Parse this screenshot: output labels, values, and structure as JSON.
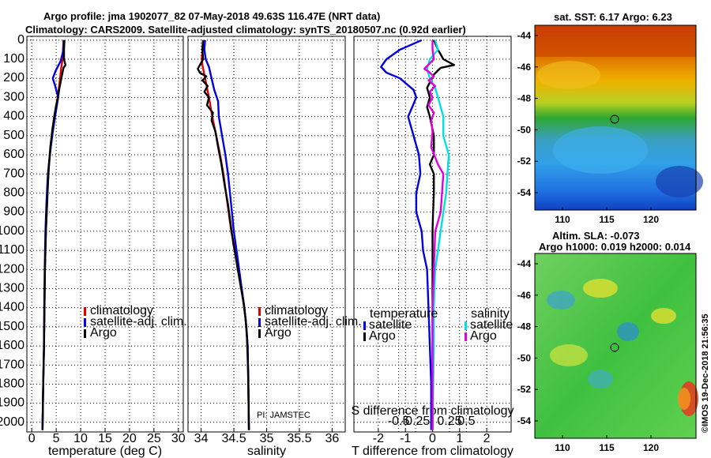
{
  "header": {
    "line1": "Argo profile: jma 1902077_82 07-May-2018 49.63S 116.47E (NRT data)",
    "line2": "Climatology: CARS2009. Satellite-adjusted climatology: synTS_20180507.nc (0.92d earlier)"
  },
  "depth_ticks": [
    0,
    100,
    200,
    300,
    400,
    500,
    600,
    700,
    800,
    900,
    1000,
    1100,
    1200,
    1300,
    1400,
    1500,
    1600,
    1700,
    1800,
    1900,
    2000
  ],
  "colors": {
    "climatology": "#e00000",
    "satellite": "#0000e0",
    "argo": "#000000",
    "satellite_diff": "#00e0e0",
    "argo_sdiff": "#e000e0"
  },
  "chart_data": [
    {
      "type": "line",
      "name": "temperature-profile",
      "xlabel": "temperature (deg C)",
      "ylabel": "depth",
      "xlim": [
        -1,
        31
      ],
      "ylim": [
        2050,
        -20
      ],
      "xticks": [
        0,
        5,
        10,
        15,
        20,
        25,
        30
      ],
      "legend": [
        "climatology",
        "satellite-adj. clim.",
        "Argo"
      ],
      "series": [
        {
          "name": "climatology",
          "color": "climatology",
          "points": [
            [
              6.5,
              0
            ],
            [
              6.4,
              50
            ],
            [
              6.3,
              100
            ],
            [
              6.0,
              150
            ],
            [
              5.8,
              200
            ],
            [
              5.3,
              300
            ],
            [
              4.6,
              400
            ],
            [
              4.1,
              500
            ],
            [
              3.7,
              600
            ],
            [
              3.4,
              700
            ],
            [
              3.2,
              800
            ],
            [
              3.05,
              900
            ],
            [
              2.9,
              1000
            ],
            [
              2.8,
              1100
            ],
            [
              2.7,
              1200
            ],
            [
              2.6,
              1400
            ],
            [
              2.5,
              1600
            ],
            [
              2.35,
              1800
            ],
            [
              2.2,
              2040
            ]
          ]
        },
        {
          "name": "satellite-adj. clim.",
          "color": "satellite",
          "points": [
            [
              6.6,
              0
            ],
            [
              6.4,
              60
            ],
            [
              5.9,
              110
            ],
            [
              4.9,
              160
            ],
            [
              4.3,
              200
            ],
            [
              4.8,
              240
            ],
            [
              5.4,
              300
            ],
            [
              4.9,
              380
            ],
            [
              4.3,
              480
            ],
            [
              3.8,
              580
            ],
            [
              3.3,
              700
            ],
            [
              3.0,
              850
            ],
            [
              2.8,
              1000
            ],
            [
              2.65,
              1200
            ],
            [
              2.55,
              1400
            ],
            [
              2.5,
              1600
            ],
            [
              2.35,
              1800
            ],
            [
              2.2,
              2040
            ]
          ]
        },
        {
          "name": "Argo",
          "color": "argo",
          "points": [
            [
              6.7,
              0
            ],
            [
              6.6,
              50
            ],
            [
              6.6,
              100
            ],
            [
              6.9,
              130
            ],
            [
              6.5,
              145
            ],
            [
              6.2,
              180
            ],
            [
              5.9,
              220
            ],
            [
              5.6,
              260
            ],
            [
              5.4,
              300
            ],
            [
              5.0,
              340
            ],
            [
              4.6,
              400
            ],
            [
              4.2,
              470
            ],
            [
              3.8,
              560
            ],
            [
              3.5,
              660
            ],
            [
              3.3,
              760
            ],
            [
              3.1,
              880
            ],
            [
              2.9,
              1000
            ],
            [
              2.8,
              1100
            ],
            [
              2.7,
              1200
            ],
            [
              2.6,
              1400
            ],
            [
              2.5,
              1600
            ],
            [
              2.35,
              1800
            ],
            [
              2.2,
              2040
            ]
          ]
        }
      ]
    },
    {
      "type": "line",
      "name": "salinity-profile",
      "xlabel": "salinity",
      "ylabel": "depth",
      "xlim": [
        33.8,
        36.2
      ],
      "ylim": [
        2050,
        -20
      ],
      "xticks": [
        34,
        34.5,
        35,
        35.5,
        36
      ],
      "xticklabels": [
        "34",
        "34.5",
        "35",
        "35.5",
        "36"
      ],
      "legend": [
        "climatology",
        "satellite-adj. clim.",
        "Argo"
      ],
      "annotation": "PI: JAMSTEC",
      "series": [
        {
          "name": "climatology",
          "color": "climatology",
          "points": [
            [
              34.03,
              0
            ],
            [
              34.02,
              60
            ],
            [
              34.01,
              100
            ],
            [
              34.02,
              130
            ],
            [
              34.06,
              200
            ],
            [
              34.12,
              300
            ],
            [
              34.17,
              400
            ],
            [
              34.23,
              500
            ],
            [
              34.29,
              600
            ],
            [
              34.34,
              700
            ],
            [
              34.38,
              800
            ],
            [
              34.42,
              900
            ],
            [
              34.46,
              1000
            ],
            [
              34.52,
              1100
            ],
            [
              34.56,
              1200
            ],
            [
              34.62,
              1300
            ],
            [
              34.66,
              1400
            ],
            [
              34.69,
              1500
            ],
            [
              34.71,
              1600
            ],
            [
              34.72,
              1800
            ],
            [
              34.73,
              2040
            ]
          ]
        },
        {
          "name": "satellite-adj. clim.",
          "color": "satellite",
          "points": [
            [
              34.06,
              0
            ],
            [
              34.05,
              50
            ],
            [
              34.07,
              100
            ],
            [
              34.12,
              140
            ],
            [
              34.16,
              200
            ],
            [
              34.2,
              260
            ],
            [
              34.26,
              320
            ],
            [
              34.27,
              400
            ],
            [
              34.32,
              500
            ],
            [
              34.37,
              600
            ],
            [
              34.41,
              700
            ],
            [
              34.44,
              800
            ],
            [
              34.47,
              900
            ],
            [
              34.5,
              1000
            ],
            [
              34.54,
              1100
            ],
            [
              34.58,
              1200
            ],
            [
              34.62,
              1300
            ],
            [
              34.66,
              1400
            ],
            [
              34.69,
              1500
            ],
            [
              34.71,
              1600
            ],
            [
              34.72,
              1800
            ],
            [
              34.73,
              2040
            ]
          ]
        },
        {
          "name": "Argo",
          "color": "argo",
          "points": [
            [
              34.03,
              0
            ],
            [
              34.02,
              50
            ],
            [
              34.03,
              100
            ],
            [
              33.95,
              150
            ],
            [
              33.98,
              170
            ],
            [
              34.08,
              190
            ],
            [
              34.02,
              210
            ],
            [
              34.1,
              240
            ],
            [
              34.05,
              270
            ],
            [
              34.12,
              300
            ],
            [
              34.09,
              340
            ],
            [
              34.18,
              380
            ],
            [
              34.16,
              420
            ],
            [
              34.22,
              480
            ],
            [
              34.26,
              560
            ],
            [
              34.31,
              650
            ],
            [
              34.36,
              760
            ],
            [
              34.41,
              860
            ],
            [
              34.45,
              960
            ],
            [
              34.49,
              1060
            ],
            [
              34.54,
              1160
            ],
            [
              34.59,
              1260
            ],
            [
              34.64,
              1360
            ],
            [
              34.68,
              1460
            ],
            [
              34.7,
              1560
            ],
            [
              34.72,
              1750
            ],
            [
              34.73,
              2040
            ]
          ]
        }
      ]
    },
    {
      "type": "line",
      "name": "difference-profile",
      "xlabel": "T difference from climatology",
      "xlabel_top": "S difference from climatology",
      "ylabel": "depth",
      "xlim": [
        -2.9,
        2.9
      ],
      "ylim": [
        2050,
        -20
      ],
      "xticks": [
        -2,
        -1,
        0,
        1,
        2
      ],
      "s_xticks": [
        -1.25,
        -0.625,
        0.625,
        1.25
      ],
      "s_xticklabels": [
        "-0.5",
        "-0.25",
        "0.25",
        "0.5"
      ],
      "legend_temperature_title": "temperature",
      "legend_salinity_title": "salinity",
      "legend": [
        "satellite",
        "Argo",
        "satellite",
        "Argo"
      ],
      "series": [
        {
          "name": "T satellite",
          "color": "satellite",
          "points": [
            [
              -0.4,
              0
            ],
            [
              -1.2,
              50
            ],
            [
              -1.7,
              100
            ],
            [
              -1.9,
              140
            ],
            [
              -1.7,
              170
            ],
            [
              -1.2,
              200
            ],
            [
              -0.7,
              260
            ],
            [
              -0.6,
              300
            ],
            [
              -0.75,
              350
            ],
            [
              -0.9,
              400
            ],
            [
              -0.7,
              500
            ],
            [
              -0.5,
              600
            ],
            [
              -0.45,
              700
            ],
            [
              -0.6,
              800
            ],
            [
              -0.6,
              900
            ],
            [
              -0.4,
              1000
            ],
            [
              -0.35,
              1100
            ],
            [
              -0.2,
              1200
            ],
            [
              -0.15,
              1400
            ],
            [
              -0.1,
              1600
            ],
            [
              -0.05,
              1800
            ],
            [
              -0.05,
              2040
            ]
          ]
        },
        {
          "name": "T Argo",
          "color": "argo",
          "points": [
            [
              0.05,
              0
            ],
            [
              0.2,
              50
            ],
            [
              0.4,
              100
            ],
            [
              0.8,
              130
            ],
            [
              0.3,
              145
            ],
            [
              0.05,
              180
            ],
            [
              -0.2,
              250
            ],
            [
              -0.1,
              300
            ],
            [
              -0.2,
              350
            ],
            [
              -0.1,
              400
            ],
            [
              0.05,
              500
            ],
            [
              0.05,
              600
            ],
            [
              -0.1,
              650
            ],
            [
              0.05,
              700
            ],
            [
              0.05,
              800
            ],
            [
              0.02,
              900
            ],
            [
              0.0,
              1000
            ],
            [
              0.0,
              1200
            ],
            [
              0.0,
              1400
            ],
            [
              0.0,
              1600
            ],
            [
              0.0,
              2040
            ]
          ]
        },
        {
          "name": "S satellite",
          "color": "satellite_diff",
          "points": [
            [
              0.1,
              0
            ],
            [
              0.2,
              50
            ],
            [
              -0.1,
              100
            ],
            [
              -0.2,
              150
            ],
            [
              -0.1,
              200
            ],
            [
              0.1,
              250
            ],
            [
              0.2,
              300
            ],
            [
              0.4,
              400
            ],
            [
              0.4,
              500
            ],
            [
              0.6,
              600
            ],
            [
              0.55,
              700
            ],
            [
              0.5,
              800
            ],
            [
              0.4,
              900
            ],
            [
              0.3,
              1000
            ],
            [
              0.2,
              1100
            ],
            [
              0.1,
              1200
            ],
            [
              0.05,
              1400
            ],
            [
              0.05,
              1600
            ],
            [
              0.0,
              2040
            ]
          ]
        },
        {
          "name": "S Argo",
          "color": "argo_sdiff",
          "points": [
            [
              0.0,
              0
            ],
            [
              0.0,
              50
            ],
            [
              0.05,
              100
            ],
            [
              -0.3,
              150
            ],
            [
              -0.1,
              170
            ],
            [
              0.05,
              190
            ],
            [
              -0.15,
              210
            ],
            [
              0.1,
              240
            ],
            [
              -0.1,
              270
            ],
            [
              0.0,
              300
            ],
            [
              -0.15,
              340
            ],
            [
              0.05,
              380
            ],
            [
              -0.05,
              420
            ],
            [
              0.0,
              480
            ],
            [
              -0.05,
              560
            ],
            [
              0.2,
              650
            ],
            [
              0.4,
              700
            ],
            [
              0.35,
              800
            ],
            [
              0.3,
              900
            ],
            [
              0.1,
              1000
            ],
            [
              0.05,
              1200
            ],
            [
              0.0,
              1400
            ],
            [
              0.0,
              1600
            ],
            [
              0.0,
              2040
            ]
          ]
        }
      ]
    }
  ],
  "maps": {
    "sst_title": "sat. SST: 6.17 Argo: 6.23",
    "sla_title1": "Altim. SLA: -0.073",
    "sla_title2": "Argo h1000: 0.019 h2000: 0.014",
    "lat_ticks": [
      "-44",
      "-46",
      "-48",
      "-50",
      "-52",
      "-54"
    ],
    "lon_ticks": [
      "110",
      "115",
      "120"
    ],
    "credit": "©IMOS 19-Dec-2018 21:56:35"
  }
}
